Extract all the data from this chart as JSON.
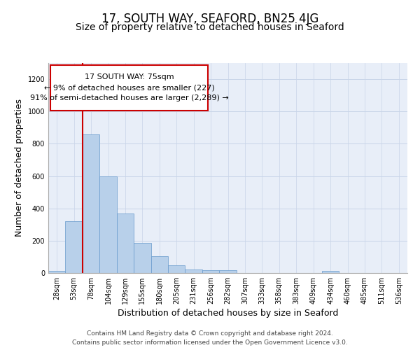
{
  "title": "17, SOUTH WAY, SEAFORD, BN25 4JG",
  "subtitle": "Size of property relative to detached houses in Seaford",
  "xlabel": "Distribution of detached houses by size in Seaford",
  "ylabel": "Number of detached properties",
  "bar_values": [
    15,
    320,
    860,
    600,
    370,
    185,
    105,
    48,
    22,
    18,
    18,
    0,
    0,
    0,
    0,
    0,
    12,
    0,
    0,
    0,
    0
  ],
  "bar_labels": [
    "28sqm",
    "53sqm",
    "78sqm",
    "104sqm",
    "129sqm",
    "155sqm",
    "180sqm",
    "205sqm",
    "231sqm",
    "256sqm",
    "282sqm",
    "307sqm",
    "333sqm",
    "358sqm",
    "383sqm",
    "409sqm",
    "434sqm",
    "460sqm",
    "485sqm",
    "511sqm",
    "536sqm"
  ],
  "bar_color": "#b8d0ea",
  "bar_edge_color": "#6699cc",
  "bar_width": 1.0,
  "ylim": [
    0,
    1300
  ],
  "yticks": [
    0,
    200,
    400,
    600,
    800,
    1000,
    1200
  ],
  "vline_x": 1.5,
  "vline_color": "#cc0000",
  "annotation_text": "17 SOUTH WAY: 75sqm\n← 9% of detached houses are smaller (227)\n91% of semi-detached houses are larger (2,289) →",
  "annotation_box_color": "#cc0000",
  "footer_line1": "Contains HM Land Registry data © Crown copyright and database right 2024.",
  "footer_line2": "Contains public sector information licensed under the Open Government Licence v3.0.",
  "bg_color": "#e8eef8",
  "grid_color": "#c8d4e8",
  "title_fontsize": 12,
  "subtitle_fontsize": 10,
  "label_fontsize": 9,
  "tick_fontsize": 7,
  "footer_fontsize": 6.5,
  "ann_fontsize": 8
}
